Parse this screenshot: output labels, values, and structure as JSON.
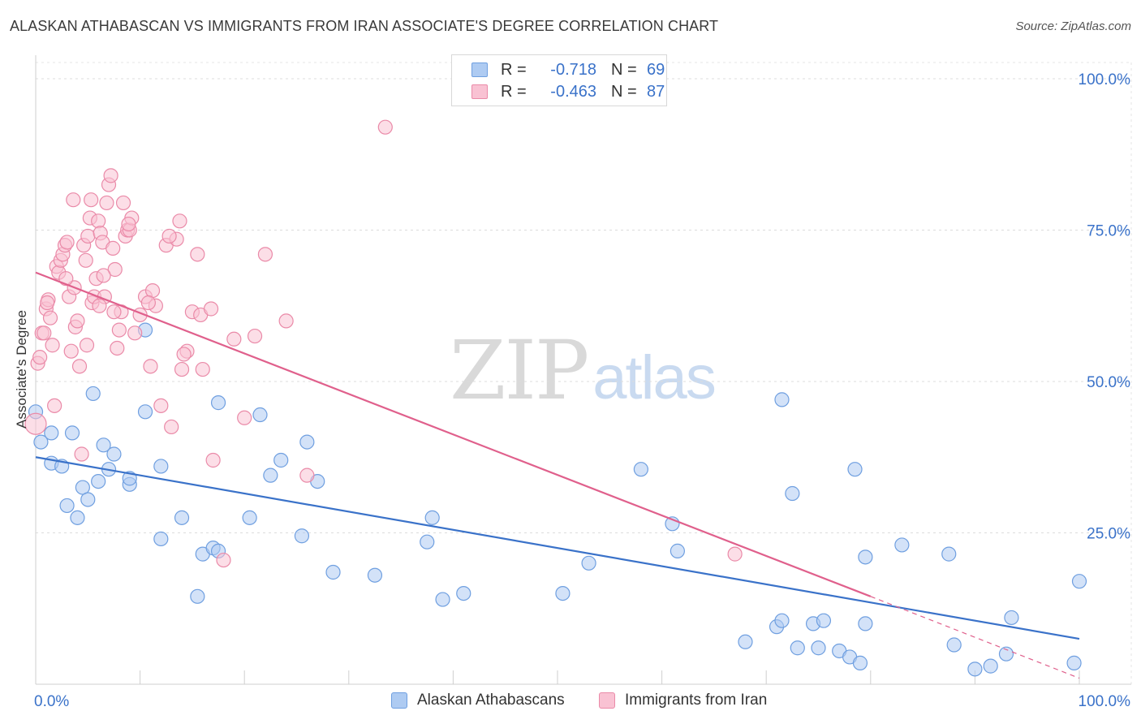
{
  "header": {
    "title": "ALASKAN ATHABASCAN VS IMMIGRANTS FROM IRAN ASSOCIATE'S DEGREE CORRELATION CHART",
    "source": "Source: ZipAtlas.com"
  },
  "watermark": {
    "zip": "ZIP",
    "atlas": "atlas"
  },
  "stats": [
    {
      "r_label": "R =",
      "r_value": "-0.718",
      "n_label": "N =",
      "n_value": "69",
      "color": "#aecbf2",
      "border": "#6f9fe0"
    },
    {
      "r_label": "R =",
      "r_value": "-0.463",
      "n_label": "N =",
      "n_value": "87",
      "color": "#f9c2d3",
      "border": "#ea8aa8"
    }
  ],
  "legend": {
    "items": [
      {
        "label": "Alaskan Athabascans",
        "color": "#aecbf2",
        "border": "#6f9fe0"
      },
      {
        "label": "Immigrants from Iran",
        "color": "#f9c2d3",
        "border": "#ea8aa8"
      }
    ]
  },
  "chart_data": {
    "type": "scatter",
    "title": "ALASKAN ATHABASCAN VS IMMIGRANTS FROM IRAN ASSOCIATE'S DEGREE CORRELATION CHART",
    "xlabel": "",
    "ylabel": "Associate's Degree",
    "xlim": [
      0,
      100
    ],
    "ylim": [
      0,
      100
    ],
    "x_tick_labels": [
      "0.0%",
      "100.0%"
    ],
    "y_tick_values": [
      25,
      50,
      75,
      100
    ],
    "y_tick_labels": [
      "25.0%",
      "50.0%",
      "75.0%",
      "100.0%"
    ],
    "grid": true,
    "colors": {
      "blue": "#3a72c9",
      "pink": "#e0608c",
      "tick_label": "#3a72c9"
    },
    "series": [
      {
        "name": "Alaskan Athabascans",
        "color": "#6f9fe0",
        "fill": "#aecbf2",
        "trend": {
          "x": [
            0,
            100
          ],
          "y": [
            37.5,
            7.5
          ],
          "dashed_from": null
        },
        "points": [
          [
            0,
            45
          ],
          [
            0.5,
            40
          ],
          [
            1.5,
            41.5
          ],
          [
            1.5,
            36.5
          ],
          [
            2.5,
            36
          ],
          [
            3,
            29.5
          ],
          [
            3.5,
            41.5
          ],
          [
            4,
            27.5
          ],
          [
            4.5,
            32.5
          ],
          [
            5,
            30.5
          ],
          [
            5.5,
            48
          ],
          [
            6,
            33.5
          ],
          [
            6.5,
            39.5
          ],
          [
            7,
            35.5
          ],
          [
            7.5,
            38
          ],
          [
            9,
            33
          ],
          [
            9,
            34
          ],
          [
            10.5,
            58.5
          ],
          [
            10.5,
            45
          ],
          [
            12,
            24
          ],
          [
            12,
            36
          ],
          [
            14,
            27.5
          ],
          [
            15.5,
            14.5
          ],
          [
            16,
            21.5
          ],
          [
            17,
            22.5
          ],
          [
            17.5,
            22
          ],
          [
            17.5,
            46.5
          ],
          [
            20.5,
            27.5
          ],
          [
            21.5,
            44.5
          ],
          [
            22.5,
            34.5
          ],
          [
            23.5,
            37
          ],
          [
            25.5,
            24.5
          ],
          [
            26,
            40
          ],
          [
            27,
            33.5
          ],
          [
            28.5,
            18.5
          ],
          [
            32.5,
            18
          ],
          [
            37.5,
            23.5
          ],
          [
            38,
            27.5
          ],
          [
            39,
            14
          ],
          [
            41,
            15
          ],
          [
            50.5,
            15
          ],
          [
            53,
            20
          ],
          [
            58,
            35.5
          ],
          [
            61,
            26.5
          ],
          [
            61.5,
            22
          ],
          [
            68,
            7
          ],
          [
            71,
            9.5
          ],
          [
            71.5,
            10.5
          ],
          [
            71.5,
            47
          ],
          [
            72.5,
            31.5
          ],
          [
            73,
            6
          ],
          [
            74.5,
            10
          ],
          [
            75,
            6
          ],
          [
            75.5,
            10.5
          ],
          [
            77,
            5.5
          ],
          [
            78,
            4.5
          ],
          [
            78.5,
            35.5
          ],
          [
            79,
            3.5
          ],
          [
            79.5,
            10
          ],
          [
            79.5,
            21
          ],
          [
            83,
            23
          ],
          [
            87.5,
            21.5
          ],
          [
            88,
            6.5
          ],
          [
            90,
            2.5
          ],
          [
            91.5,
            3
          ],
          [
            93,
            5
          ],
          [
            93.5,
            11
          ],
          [
            99.5,
            3.5
          ],
          [
            100,
            17
          ]
        ]
      },
      {
        "name": "Immigrants from Iran",
        "color": "#ea8aa8",
        "fill": "#f9c2d3",
        "trend": {
          "x": [
            0,
            80,
            100
          ],
          "y": [
            68,
            14.5,
            1
          ],
          "dashed_from": 80
        },
        "points": [
          [
            0,
            43
          ],
          [
            0.2,
            53
          ],
          [
            0.4,
            54
          ],
          [
            0.6,
            58
          ],
          [
            0.8,
            58
          ],
          [
            1,
            62
          ],
          [
            1.2,
            63.5
          ],
          [
            1.4,
            60.5
          ],
          [
            1.6,
            56
          ],
          [
            1.8,
            46
          ],
          [
            2,
            69
          ],
          [
            2.2,
            68
          ],
          [
            2.4,
            70
          ],
          [
            2.6,
            71
          ],
          [
            2.8,
            72.5
          ],
          [
            3,
            73
          ],
          [
            3.2,
            64
          ],
          [
            3.4,
            55
          ],
          [
            3.6,
            80
          ],
          [
            3.8,
            59
          ],
          [
            4,
            60
          ],
          [
            4.2,
            52.5
          ],
          [
            4.4,
            38
          ],
          [
            4.6,
            72.5
          ],
          [
            4.8,
            70
          ],
          [
            5,
            74
          ],
          [
            5.2,
            77
          ],
          [
            5.4,
            63
          ],
          [
            5.6,
            64
          ],
          [
            5.8,
            67
          ],
          [
            6,
            76.5
          ],
          [
            6.2,
            74.5
          ],
          [
            6.4,
            73
          ],
          [
            6.6,
            64
          ],
          [
            6.8,
            79.5
          ],
          [
            7,
            82.5
          ],
          [
            7.2,
            84
          ],
          [
            7.4,
            72
          ],
          [
            7.6,
            68.5
          ],
          [
            7.8,
            55.5
          ],
          [
            8,
            58.5
          ],
          [
            8.2,
            61.5
          ],
          [
            8.4,
            79.5
          ],
          [
            8.6,
            74
          ],
          [
            8.8,
            75
          ],
          [
            9,
            75
          ],
          [
            9.5,
            58
          ],
          [
            10,
            61
          ],
          [
            10.5,
            64
          ],
          [
            11,
            52.5
          ],
          [
            11.5,
            62.5
          ],
          [
            12,
            46
          ],
          [
            12.5,
            72.5
          ],
          [
            13,
            42.5
          ],
          [
            13.5,
            73.5
          ],
          [
            14,
            52
          ],
          [
            14.5,
            55
          ],
          [
            15,
            61.5
          ],
          [
            15.5,
            71
          ],
          [
            16,
            52
          ],
          [
            17,
            37
          ],
          [
            18,
            20.5
          ],
          [
            19,
            57
          ],
          [
            20,
            44
          ],
          [
            21,
            57.5
          ],
          [
            22,
            71
          ],
          [
            24,
            60
          ],
          [
            26,
            34.5
          ],
          [
            33.5,
            92
          ],
          [
            6.5,
            67.5
          ],
          [
            7.5,
            61.5
          ],
          [
            9.2,
            77
          ],
          [
            11.2,
            65
          ],
          [
            12.8,
            74
          ],
          [
            14.2,
            54.5
          ],
          [
            3.7,
            65.5
          ],
          [
            2.9,
            67
          ],
          [
            4.9,
            56
          ],
          [
            6.1,
            62.5
          ],
          [
            10.8,
            63
          ],
          [
            13.8,
            76.5
          ],
          [
            15.8,
            61
          ],
          [
            16.8,
            62
          ],
          [
            8.9,
            76
          ],
          [
            5.3,
            80
          ],
          [
            1.1,
            63
          ],
          [
            67,
            21.5
          ]
        ]
      }
    ]
  }
}
